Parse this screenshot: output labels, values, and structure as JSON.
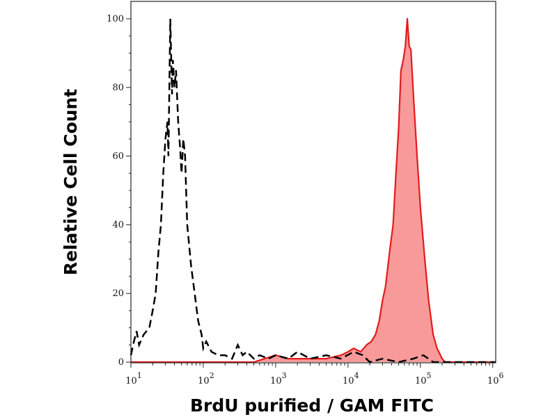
{
  "chart_data": {
    "type": "area",
    "title": "",
    "xlabel": "BrdU purified / GAM FITC",
    "ylabel": "Relative Cell Count",
    "xscale": "log",
    "xlim": [
      10,
      1100000
    ],
    "ylim": [
      0,
      100
    ],
    "grid": false,
    "x_ticks": [
      {
        "value": 10,
        "base": "10",
        "exp": "1"
      },
      {
        "value": 100,
        "base": "10",
        "exp": "2"
      },
      {
        "value": 1000,
        "base": "10",
        "exp": "3"
      },
      {
        "value": 10000,
        "base": "10",
        "exp": "4"
      },
      {
        "value": 100000,
        "base": "10",
        "exp": "5"
      },
      {
        "value": 1000000,
        "base": "10",
        "exp": "6"
      }
    ],
    "y_ticks": [
      {
        "value": 0,
        "label": "0"
      },
      {
        "value": 20,
        "label": "20"
      },
      {
        "value": 40,
        "label": "40"
      },
      {
        "value": 60,
        "label": "60"
      },
      {
        "value": 80,
        "label": "80"
      },
      {
        "value": 100,
        "label": "100"
      }
    ],
    "series": [
      {
        "style": "dashed-line",
        "color": "#000000",
        "points": [
          [
            10,
            2
          ],
          [
            11,
            6
          ],
          [
            12,
            9
          ],
          [
            13,
            5
          ],
          [
            15,
            8
          ],
          [
            18,
            10
          ],
          [
            20,
            15
          ],
          [
            22,
            20
          ],
          [
            24,
            32
          ],
          [
            26,
            40
          ],
          [
            28,
            55
          ],
          [
            30,
            65
          ],
          [
            32,
            70
          ],
          [
            33,
            60
          ],
          [
            35,
            100
          ],
          [
            37,
            78
          ],
          [
            38,
            88
          ],
          [
            40,
            80
          ],
          [
            42,
            85
          ],
          [
            45,
            70
          ],
          [
            48,
            62
          ],
          [
            50,
            55
          ],
          [
            53,
            65
          ],
          [
            56,
            60
          ],
          [
            60,
            40
          ],
          [
            68,
            28
          ],
          [
            76,
            20
          ],
          [
            85,
            12
          ],
          [
            95,
            8
          ],
          [
            100,
            4
          ],
          [
            110,
            6
          ],
          [
            130,
            3
          ],
          [
            160,
            2
          ],
          [
            200,
            2
          ],
          [
            250,
            1
          ],
          [
            300,
            5
          ],
          [
            350,
            2
          ],
          [
            400,
            3
          ],
          [
            500,
            1
          ],
          [
            600,
            2
          ],
          [
            800,
            1
          ],
          [
            1000,
            2
          ],
          [
            1500,
            1
          ],
          [
            2000,
            3
          ],
          [
            3000,
            1
          ],
          [
            5000,
            2
          ],
          [
            8000,
            1
          ],
          [
            12000,
            3
          ],
          [
            16000,
            2
          ],
          [
            20000,
            0
          ],
          [
            30000,
            1
          ],
          [
            50000,
            0
          ],
          [
            80000,
            1
          ],
          [
            110000,
            2
          ],
          [
            150000,
            0
          ],
          [
            200000,
            0
          ],
          [
            1100000,
            0
          ]
        ]
      },
      {
        "style": "filled-area",
        "color": "#e31a1c",
        "fill": "#f89a9a",
        "points": [
          [
            10,
            0
          ],
          [
            500,
            0
          ],
          [
            700,
            1
          ],
          [
            1000,
            2
          ],
          [
            1500,
            1
          ],
          [
            2000,
            1
          ],
          [
            3000,
            1
          ],
          [
            5000,
            1
          ],
          [
            8000,
            2
          ],
          [
            10000,
            3
          ],
          [
            12000,
            4
          ],
          [
            15000,
            3
          ],
          [
            18000,
            5
          ],
          [
            21000,
            6
          ],
          [
            24000,
            8
          ],
          [
            27000,
            12
          ],
          [
            30000,
            18
          ],
          [
            33000,
            22
          ],
          [
            38000,
            33
          ],
          [
            42000,
            40
          ],
          [
            46000,
            55
          ],
          [
            50000,
            68
          ],
          [
            54000,
            85
          ],
          [
            58000,
            88
          ],
          [
            62000,
            92
          ],
          [
            66000,
            100
          ],
          [
            70000,
            92
          ],
          [
            74000,
            91
          ],
          [
            80000,
            78
          ],
          [
            90000,
            60
          ],
          [
            100000,
            45
          ],
          [
            115000,
            30
          ],
          [
            130000,
            18
          ],
          [
            150000,
            8
          ],
          [
            170000,
            4
          ],
          [
            200000,
            1
          ],
          [
            220000,
            0
          ],
          [
            1100000,
            0
          ]
        ]
      }
    ]
  }
}
